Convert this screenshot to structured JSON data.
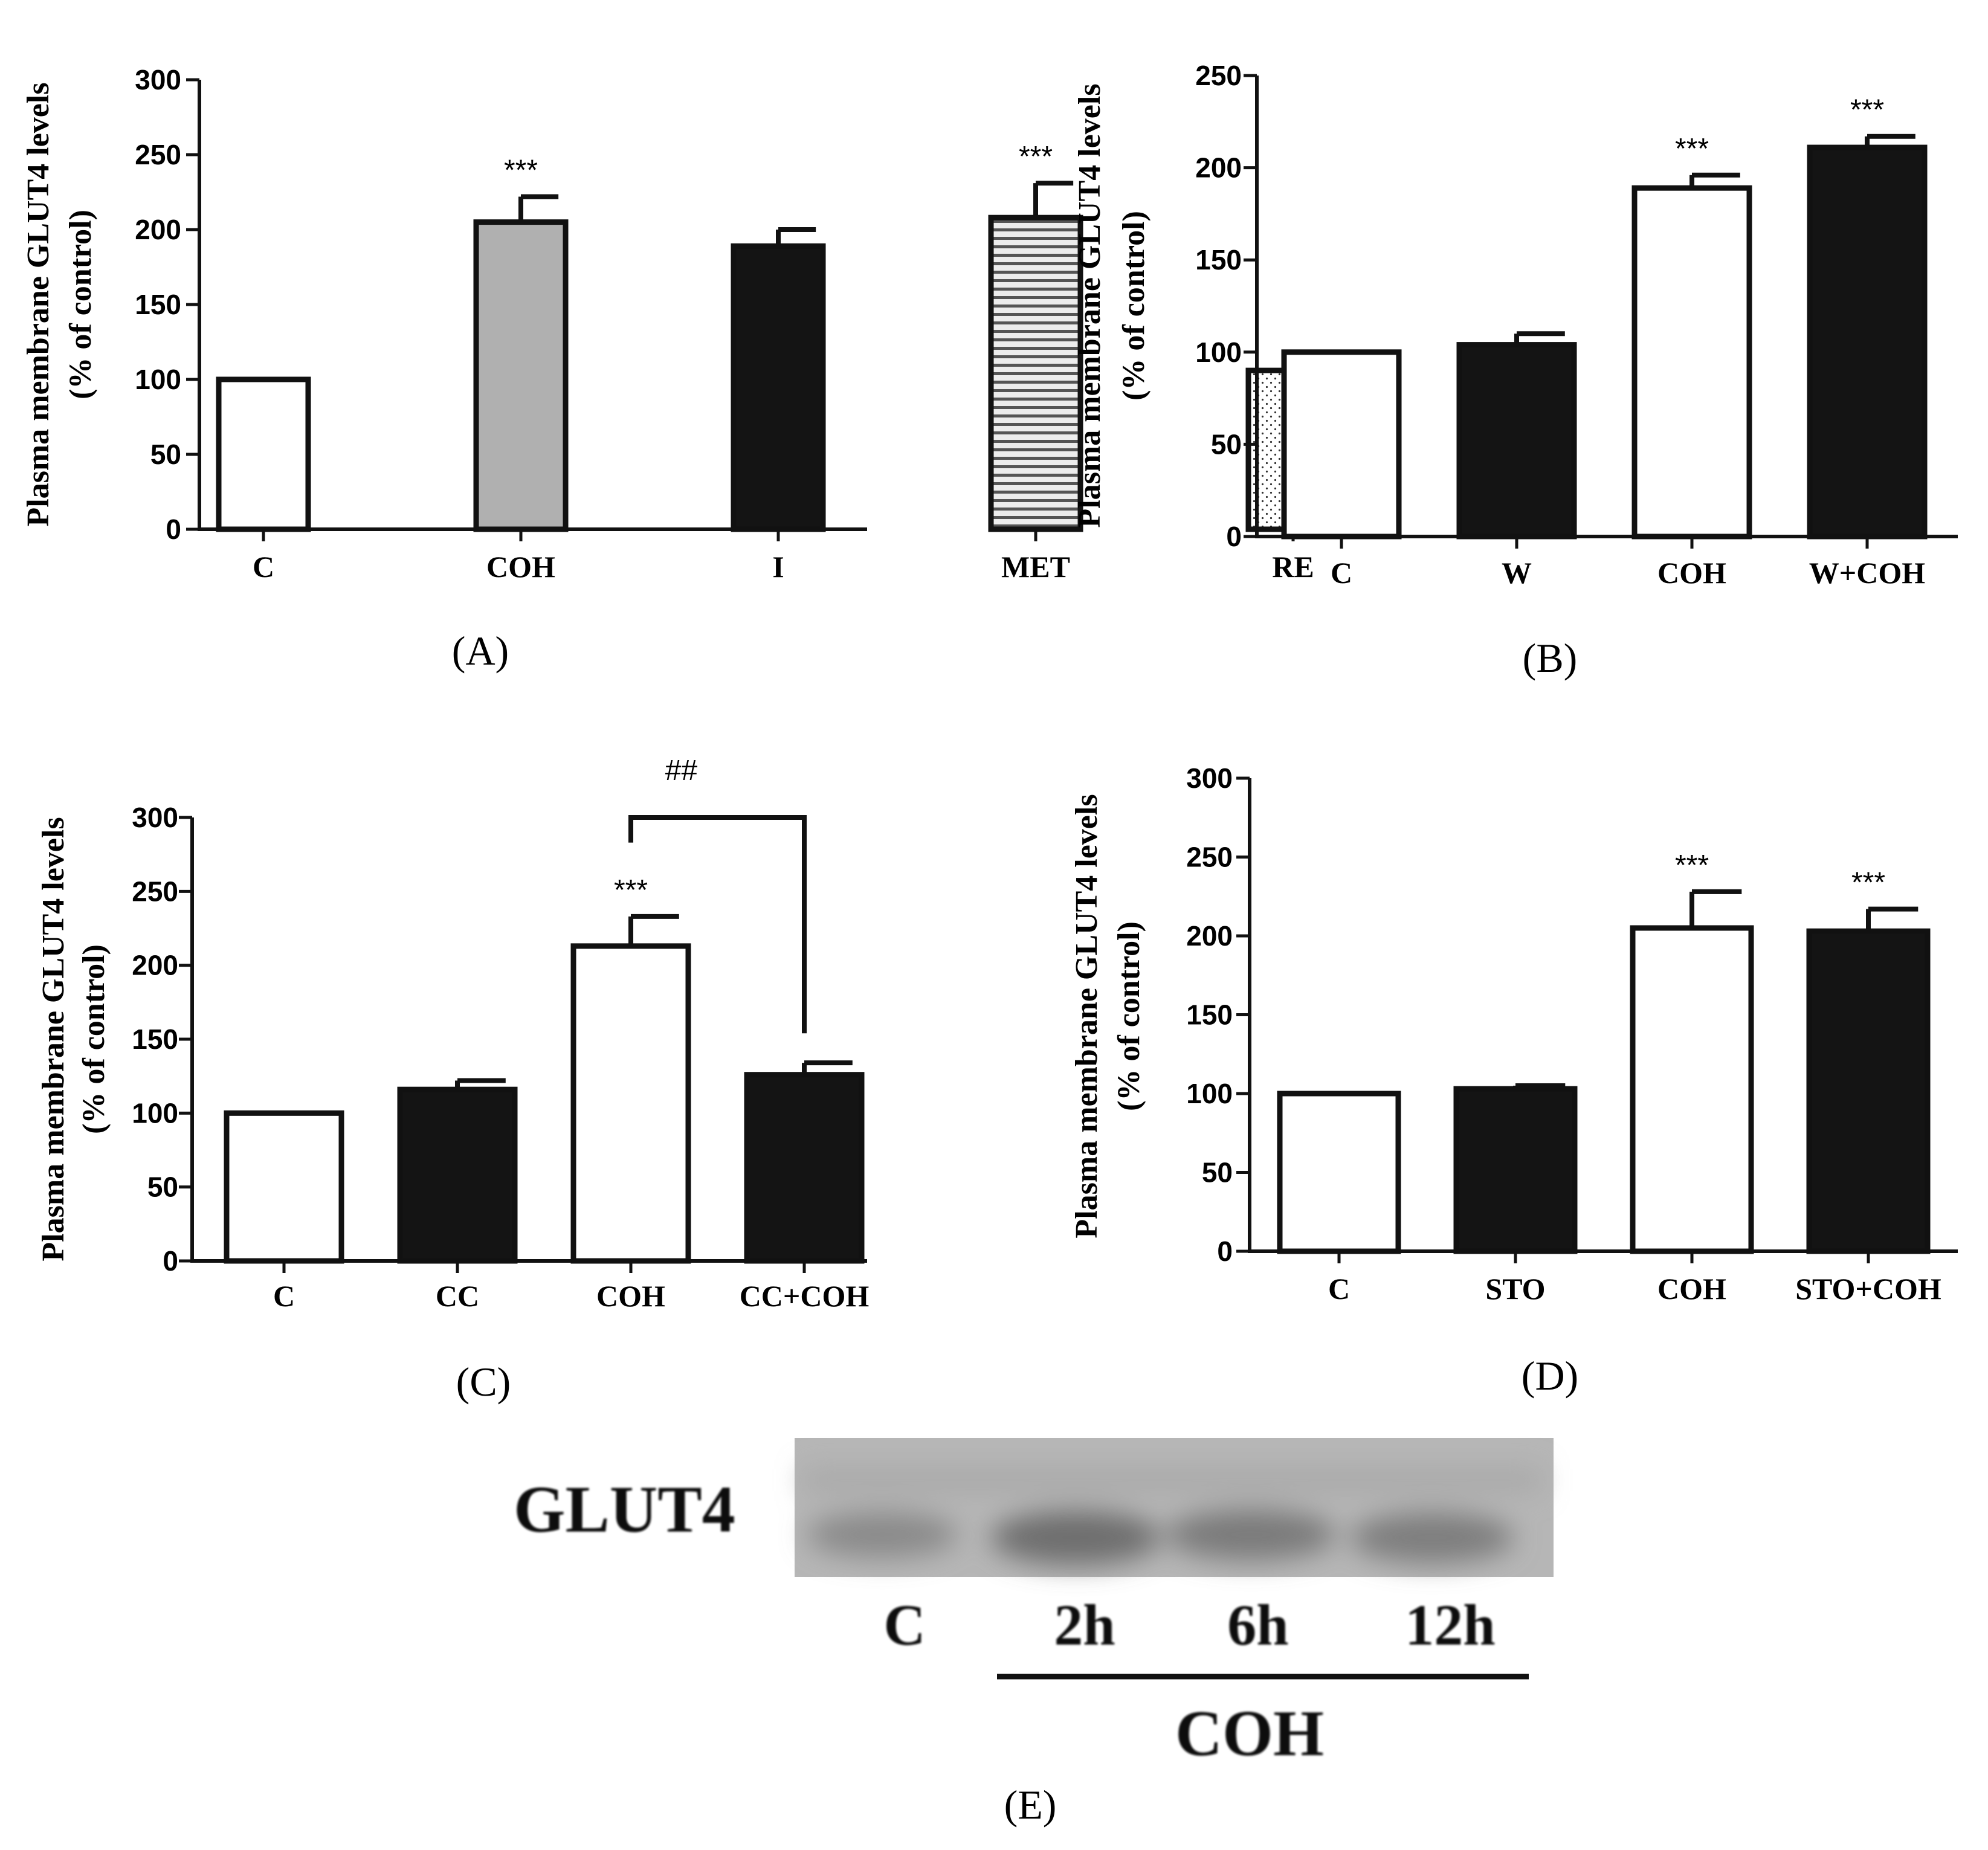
{
  "colors": {
    "white_bar": "#ffffff",
    "black_bar": "#141414",
    "gray_bar": "#b0b0b0",
    "met_bar": "#e6e6e6",
    "re_bar": "#ffffff",
    "axis": "#111111"
  },
  "chart_data": [
    {
      "id": "A",
      "type": "bar",
      "panel_label": "(A)",
      "ylabel": [
        "Plasma membrane GLUT4 levels",
        "(% of control)"
      ],
      "xlabel": "",
      "ylim": [
        0,
        300
      ],
      "yticks": [
        0,
        50,
        100,
        150,
        200,
        250,
        300
      ],
      "categories": [
        "C",
        "COH",
        "I",
        "MET",
        "RE"
      ],
      "values": [
        100,
        205,
        189,
        208,
        106
      ],
      "errors": [
        0,
        17,
        11,
        23,
        5
      ],
      "fills": [
        "white",
        "gray",
        "black",
        "hstripe",
        "dots"
      ],
      "significance": [
        "",
        "***",
        "",
        "***",
        ""
      ]
    },
    {
      "id": "B",
      "type": "bar",
      "panel_label": "(B)",
      "ylabel": [
        "Plasma membrane GLUT4 levels",
        "(% of control)"
      ],
      "xlabel": "",
      "ylim": [
        0,
        250
      ],
      "yticks": [
        0,
        50,
        100,
        150,
        200,
        250
      ],
      "categories": [
        "C",
        "W",
        "COH",
        "W+COH"
      ],
      "values": [
        100,
        104,
        189,
        211
      ],
      "errors": [
        0,
        6,
        7,
        6
      ],
      "fills": [
        "white",
        "black",
        "white",
        "black"
      ],
      "significance": [
        "",
        "",
        "***",
        "***"
      ]
    },
    {
      "id": "C",
      "type": "bar",
      "panel_label": "(C)",
      "ylabel": [
        "Plasma membrane GLUT4 levels",
        "(% of control)"
      ],
      "xlabel": "",
      "ylim": [
        0,
        300
      ],
      "yticks": [
        0,
        50,
        100,
        150,
        200,
        250,
        300
      ],
      "categories": [
        "C",
        "CC",
        "COH",
        "CC+COH"
      ],
      "values": [
        100,
        116,
        213,
        126
      ],
      "errors": [
        0,
        6,
        20,
        8
      ],
      "fills": [
        "white",
        "black",
        "white",
        "black"
      ],
      "significance": [
        "",
        "",
        "***",
        ""
      ],
      "bracket": {
        "from": 2,
        "to": 3,
        "label": "##"
      }
    },
    {
      "id": "D",
      "type": "bar",
      "panel_label": "(D)",
      "ylabel": [
        "Plasma membrane GLUT4 levels",
        "(% of control)"
      ],
      "xlabel": "",
      "ylim": [
        0,
        300
      ],
      "yticks": [
        0,
        50,
        100,
        150,
        200,
        250,
        300
      ],
      "categories": [
        "C",
        "STO",
        "COH",
        "STO+COH"
      ],
      "values": [
        100,
        103,
        205,
        203
      ],
      "errors": [
        0,
        2,
        23,
        14
      ],
      "fills": [
        "white",
        "black",
        "white",
        "black"
      ],
      "significance": [
        "",
        "",
        "***",
        "***"
      ]
    }
  ],
  "blot": {
    "protein": "GLUT4",
    "lanes": [
      "C",
      "2h",
      "6h",
      "12h"
    ],
    "group_label": "COH",
    "panel_label": "(E)"
  }
}
